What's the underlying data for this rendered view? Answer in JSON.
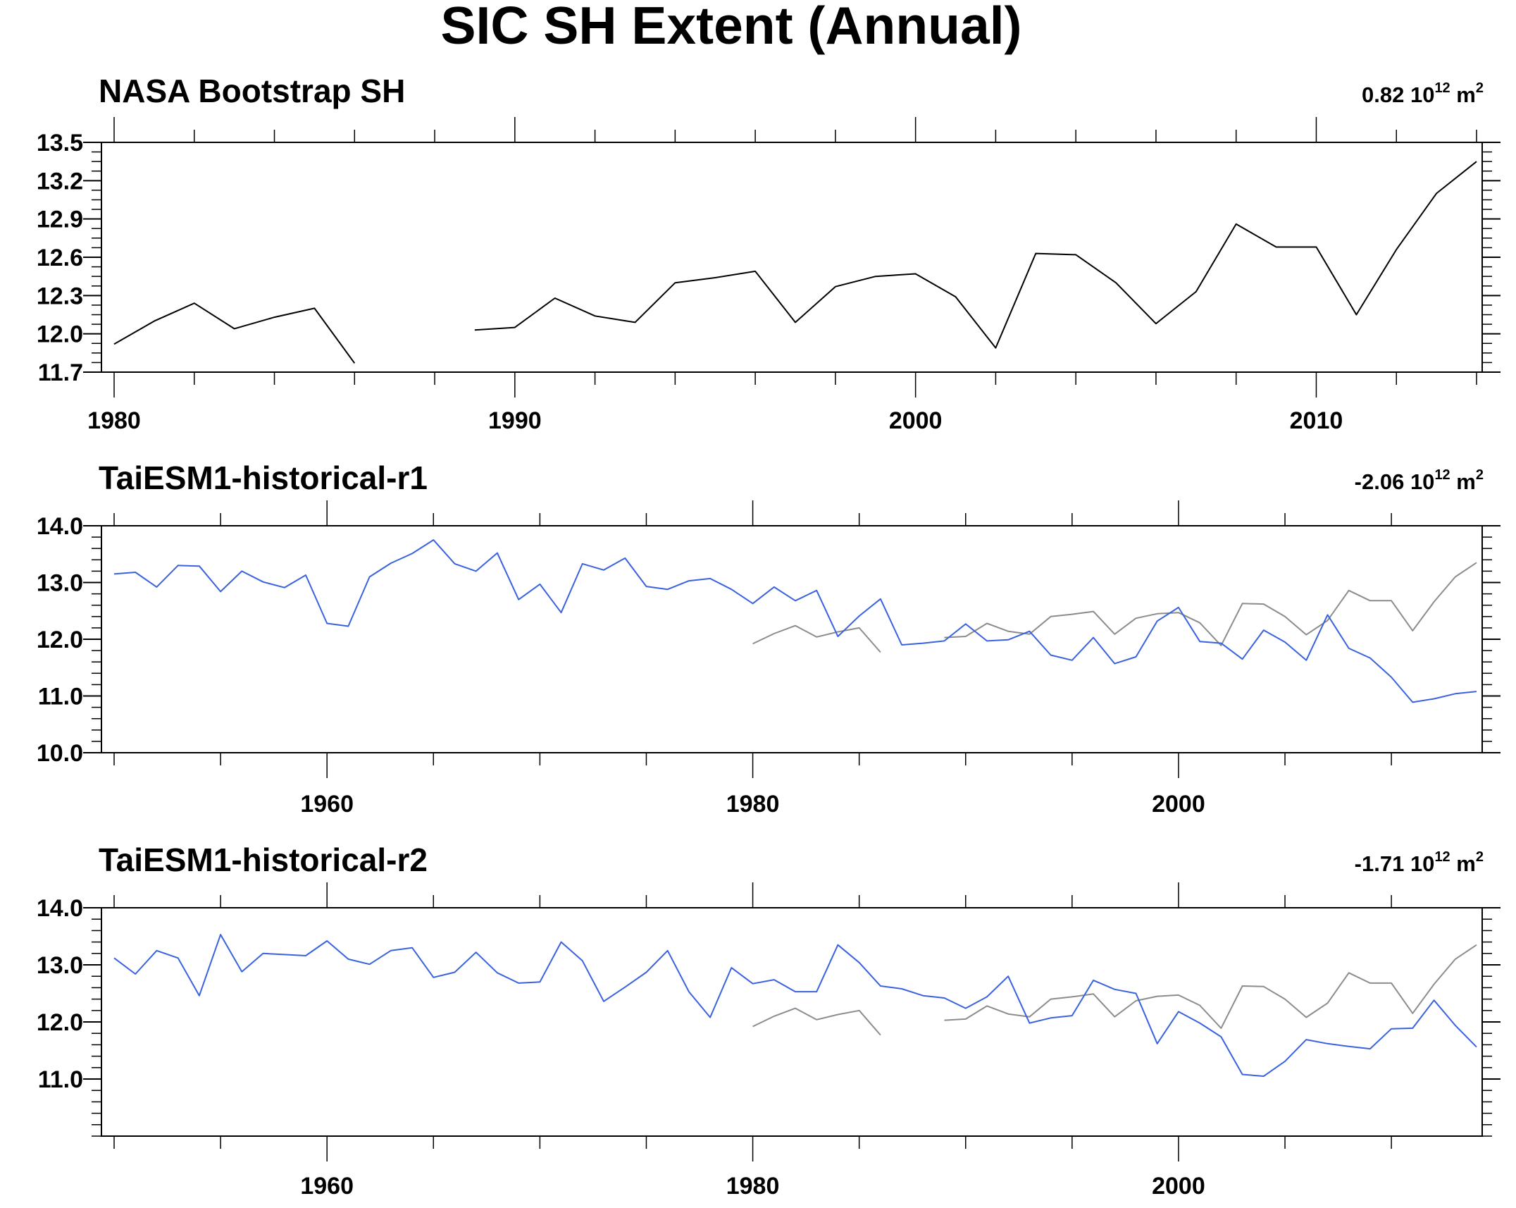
{
  "title": "SIC SH Extent (Annual)",
  "colors": {
    "observed": "#000000",
    "observed_overlay": "#8c8c8c",
    "model": "#3a62e0",
    "frame": "#000000"
  },
  "chart_data": [
    {
      "type": "line",
      "title": "NASA Bootstrap SH",
      "trend": {
        "value": "0.82",
        "base": "10",
        "exp": "12",
        "unit": "m",
        "unit_exp": "2"
      },
      "xlim": [
        1980,
        2014
      ],
      "ylim": [
        11.7,
        13.5
      ],
      "yticks": [
        "13.5",
        "13.2",
        "12.9",
        "12.6",
        "12.3",
        "12.0",
        "11.7"
      ],
      "xticks": [
        "1980",
        "1990",
        "2000",
        "2010"
      ],
      "series": [
        {
          "style": "observed",
          "x": [
            1980,
            1981,
            1982,
            1983,
            1984,
            1985,
            1986,
            1987,
            1988,
            1989,
            1990,
            1991,
            1992,
            1993,
            1994,
            1995,
            1996,
            1997,
            1998,
            1999,
            2000,
            2001,
            2002,
            2003,
            2004,
            2005,
            2006,
            2007,
            2008,
            2009,
            2010,
            2011,
            2012,
            2013,
            2014
          ],
          "y": [
            11.92,
            12.1,
            12.24,
            12.04,
            12.13,
            12.2,
            11.77,
            null,
            null,
            12.03,
            12.05,
            12.28,
            12.14,
            12.09,
            12.4,
            12.44,
            12.49,
            12.09,
            12.37,
            12.45,
            12.47,
            12.29,
            11.89,
            12.63,
            12.62,
            12.4,
            12.08,
            12.33,
            12.86,
            12.68,
            12.68,
            12.15,
            12.66,
            13.1,
            13.35
          ]
        }
      ]
    },
    {
      "type": "line",
      "title": "TaiESM1-historical-r1",
      "trend": {
        "value": "-2.06",
        "base": "10",
        "exp": "12",
        "unit": "m",
        "unit_exp": "2"
      },
      "xlim": [
        1950,
        2014
      ],
      "ylim": [
        10.0,
        14.0
      ],
      "yticks": [
        "14.0",
        "13.0",
        "12.0",
        "11.0",
        "10.0"
      ],
      "xticks": [
        "1960",
        "1980",
        "2000"
      ],
      "series": [
        {
          "style": "observed_overlay",
          "x": [
            1980,
            1981,
            1982,
            1983,
            1984,
            1985,
            1986,
            1987,
            1988,
            1989,
            1990,
            1991,
            1992,
            1993,
            1994,
            1995,
            1996,
            1997,
            1998,
            1999,
            2000,
            2001,
            2002,
            2003,
            2004,
            2005,
            2006,
            2007,
            2008,
            2009,
            2010,
            2011,
            2012,
            2013,
            2014
          ],
          "y": [
            11.92,
            12.1,
            12.24,
            12.04,
            12.13,
            12.2,
            11.77,
            null,
            null,
            12.03,
            12.05,
            12.28,
            12.14,
            12.09,
            12.4,
            12.44,
            12.49,
            12.09,
            12.37,
            12.45,
            12.47,
            12.29,
            11.89,
            12.63,
            12.62,
            12.4,
            12.08,
            12.33,
            12.86,
            12.68,
            12.68,
            12.15,
            12.66,
            13.1,
            13.35
          ]
        },
        {
          "style": "model",
          "x": [
            1950,
            1951,
            1952,
            1953,
            1954,
            1955,
            1956,
            1957,
            1958,
            1959,
            1960,
            1961,
            1962,
            1963,
            1964,
            1965,
            1966,
            1967,
            1968,
            1969,
            1970,
            1971,
            1972,
            1973,
            1974,
            1975,
            1976,
            1977,
            1978,
            1979,
            1980,
            1981,
            1982,
            1983,
            1984,
            1985,
            1986,
            1987,
            1988,
            1989,
            1990,
            1991,
            1992,
            1993,
            1994,
            1995,
            1996,
            1997,
            1998,
            1999,
            2000,
            2001,
            2002,
            2003,
            2004,
            2005,
            2006,
            2007,
            2008,
            2009,
            2010,
            2011,
            2012,
            2013,
            2014
          ],
          "y": [
            13.15,
            13.18,
            12.92,
            13.3,
            13.29,
            12.84,
            13.2,
            13.01,
            12.91,
            13.13,
            12.28,
            12.23,
            13.1,
            13.34,
            13.51,
            13.75,
            13.33,
            13.2,
            13.52,
            12.7,
            12.97,
            12.47,
            13.33,
            13.22,
            13.43,
            12.93,
            12.88,
            13.03,
            13.07,
            12.88,
            12.63,
            12.92,
            12.68,
            12.86,
            12.05,
            12.41,
            12.71,
            11.9,
            11.93,
            11.97,
            12.27,
            11.97,
            11.99,
            12.14,
            11.72,
            11.63,
            12.03,
            11.57,
            11.69,
            12.32,
            12.56,
            11.96,
            11.93,
            11.65,
            12.16,
            11.95,
            11.63,
            12.43,
            11.84,
            11.67,
            11.33,
            10.89,
            10.95,
            11.04,
            11.08
          ]
        }
      ]
    },
    {
      "type": "line",
      "title": "TaiESM1-historical-r2",
      "trend": {
        "value": "-1.71",
        "base": "10",
        "exp": "12",
        "unit": "m",
        "unit_exp": "2"
      },
      "xlim": [
        1950,
        2014
      ],
      "ylim": [
        10.0,
        14.0
      ],
      "yticks": [
        "14.0",
        "13.0",
        "12.0",
        "11.0"
      ],
      "xticks": [
        "1960",
        "1980",
        "2000"
      ],
      "series": [
        {
          "style": "observed_overlay",
          "x": [
            1980,
            1981,
            1982,
            1983,
            1984,
            1985,
            1986,
            1987,
            1988,
            1989,
            1990,
            1991,
            1992,
            1993,
            1994,
            1995,
            1996,
            1997,
            1998,
            1999,
            2000,
            2001,
            2002,
            2003,
            2004,
            2005,
            2006,
            2007,
            2008,
            2009,
            2010,
            2011,
            2012,
            2013,
            2014
          ],
          "y": [
            11.92,
            12.1,
            12.24,
            12.04,
            12.13,
            12.2,
            11.77,
            null,
            null,
            12.03,
            12.05,
            12.28,
            12.14,
            12.09,
            12.4,
            12.44,
            12.49,
            12.09,
            12.37,
            12.45,
            12.47,
            12.29,
            11.89,
            12.63,
            12.62,
            12.4,
            12.08,
            12.33,
            12.86,
            12.68,
            12.68,
            12.15,
            12.66,
            13.1,
            13.35
          ]
        },
        {
          "style": "model",
          "x": [
            1950,
            1951,
            1952,
            1953,
            1954,
            1955,
            1956,
            1957,
            1958,
            1959,
            1960,
            1961,
            1962,
            1963,
            1964,
            1965,
            1966,
            1967,
            1968,
            1969,
            1970,
            1971,
            1972,
            1973,
            1974,
            1975,
            1976,
            1977,
            1978,
            1979,
            1980,
            1981,
            1982,
            1983,
            1984,
            1985,
            1986,
            1987,
            1988,
            1989,
            1990,
            1991,
            1992,
            1993,
            1994,
            1995,
            1996,
            1997,
            1998,
            1999,
            2000,
            2001,
            2002,
            2003,
            2004,
            2005,
            2006,
            2007,
            2008,
            2009,
            2010,
            2011,
            2012,
            2013,
            2014
          ],
          "y": [
            13.12,
            12.84,
            13.25,
            13.12,
            12.46,
            13.53,
            12.88,
            13.2,
            13.18,
            13.16,
            13.42,
            13.1,
            13.01,
            13.25,
            13.3,
            12.78,
            12.87,
            13.22,
            12.86,
            12.68,
            12.7,
            13.4,
            13.07,
            12.36,
            12.61,
            12.87,
            13.25,
            12.53,
            12.08,
            12.95,
            12.67,
            12.74,
            12.53,
            12.53,
            13.35,
            13.04,
            12.63,
            12.58,
            12.46,
            12.42,
            12.24,
            12.44,
            12.8,
            11.98,
            12.07,
            12.11,
            12.73,
            12.57,
            12.5,
            11.62,
            12.18,
            11.98,
            11.74,
            11.08,
            11.05,
            11.31,
            11.69,
            11.62,
            11.57,
            11.53,
            11.88,
            11.89,
            12.38,
            11.94,
            11.56
          ]
        }
      ]
    }
  ]
}
